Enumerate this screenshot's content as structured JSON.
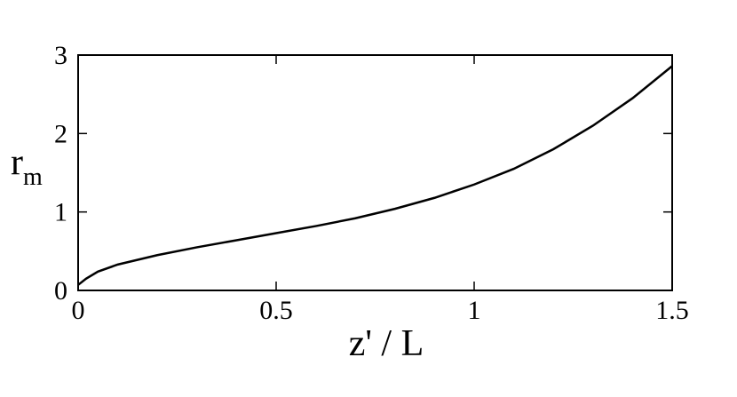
{
  "chart_data": {
    "type": "line",
    "xlabel": "z' / L",
    "ylabel": "r",
    "ylabel_sub": "m",
    "x": [
      0,
      0.02,
      0.05,
      0.1,
      0.2,
      0.3,
      0.4,
      0.5,
      0.6,
      0.7,
      0.8,
      0.9,
      1.0,
      1.1,
      1.2,
      1.3,
      1.4,
      1.5
    ],
    "series": [
      {
        "color": "#000000",
        "values": [
          0.07,
          0.15,
          0.24,
          0.33,
          0.45,
          0.55,
          0.64,
          0.73,
          0.82,
          0.92,
          1.04,
          1.18,
          1.35,
          1.55,
          1.8,
          2.1,
          2.45,
          2.86
        ]
      }
    ],
    "xlim": [
      0,
      1.5
    ],
    "ylim": [
      0,
      3
    ],
    "xticks": [
      0,
      0.5,
      1,
      1.5
    ],
    "yticks": [
      0,
      1,
      2,
      3
    ],
    "grid": false
  }
}
